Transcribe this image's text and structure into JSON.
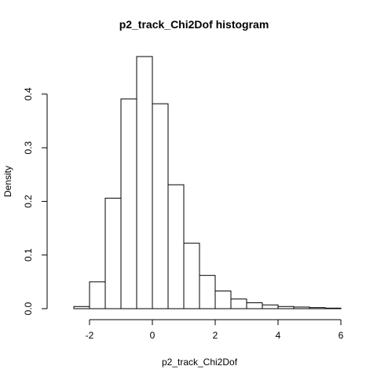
{
  "chart_data": {
    "type": "bar",
    "title": "p2_track_Chi2Dof  histogram",
    "xlabel": "p2_track_Chi2Dof",
    "ylabel": "Density",
    "x_ticks": [
      "-2",
      "0",
      "2",
      "4",
      "6"
    ],
    "y_ticks": [
      "0.0",
      "0.1",
      "0.2",
      "0.3",
      "0.4"
    ],
    "xlim": [
      -3,
      6
    ],
    "ylim": [
      0,
      0.47
    ],
    "bin_edges": [
      -2.5,
      -2.0,
      -1.5,
      -1.0,
      -0.5,
      0.0,
      0.5,
      1.0,
      1.5,
      2.0,
      2.5,
      3.0,
      3.5,
      4.0,
      4.5,
      5.0,
      5.5,
      6.0
    ],
    "values": [
      0.004,
      0.05,
      0.206,
      0.391,
      0.47,
      0.382,
      0.231,
      0.122,
      0.062,
      0.033,
      0.018,
      0.011,
      0.007,
      0.004,
      0.003,
      0.002,
      0.001
    ],
    "bar_fill": "#ffffff",
    "bar_stroke": "#000000",
    "grid": false
  }
}
